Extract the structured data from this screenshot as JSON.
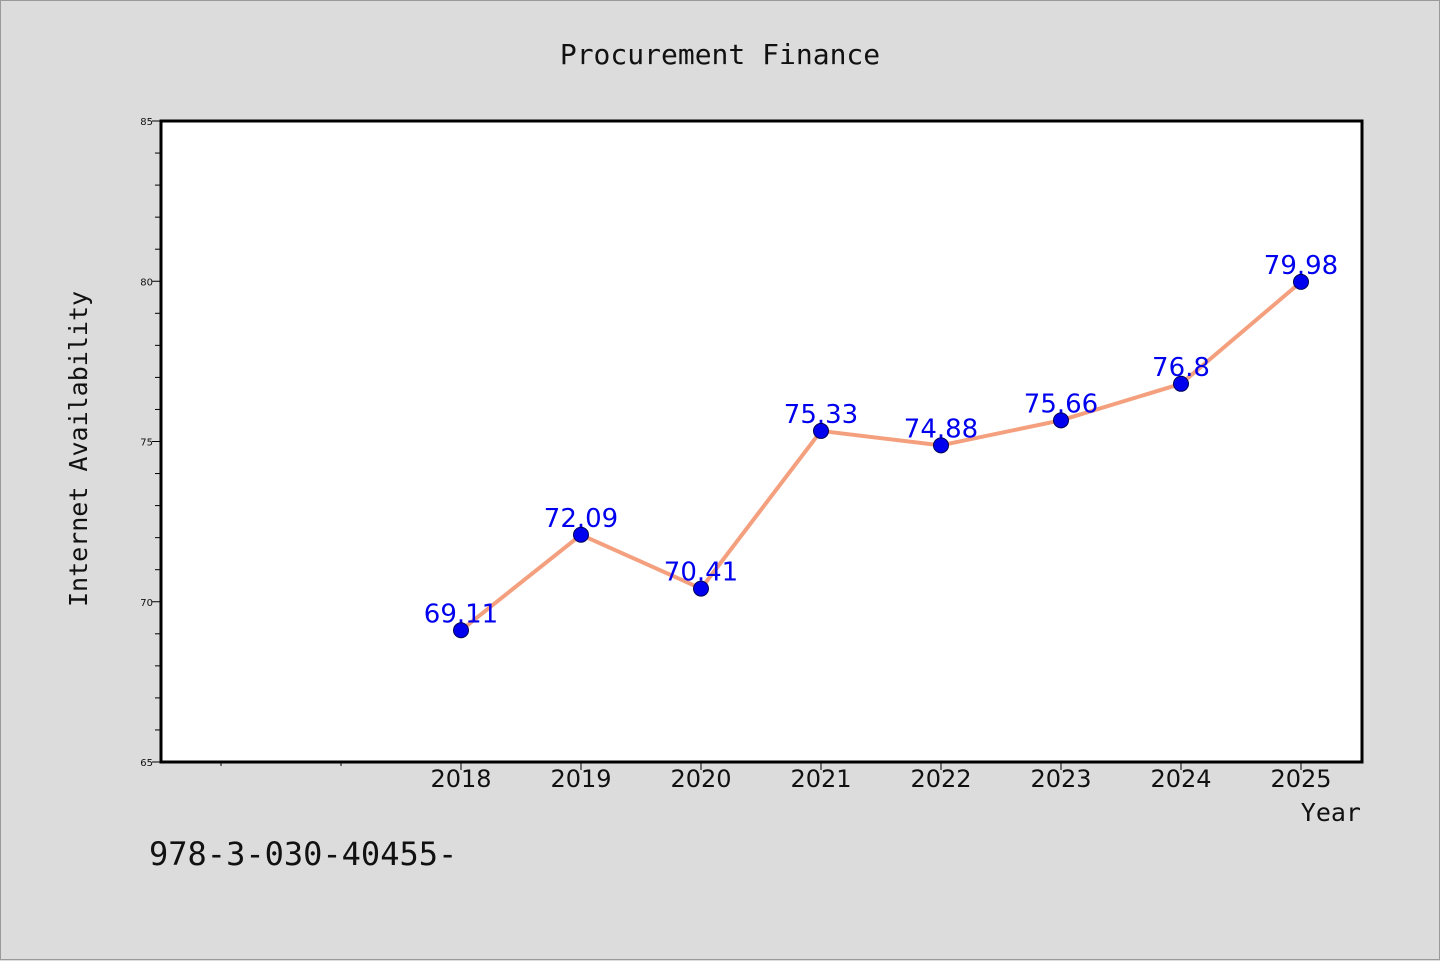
{
  "chart_data": {
    "type": "line",
    "title": "Procurement Finance",
    "xlabel": "Year",
    "ylabel": "Internet Availability",
    "x": [
      "2018",
      "2019",
      "2020",
      "2021",
      "2022",
      "2023",
      "2024",
      "2025"
    ],
    "series": [
      {
        "values": [
          69.11,
          72.09,
          70.41,
          75.33,
          74.88,
          75.66,
          76.8,
          79.98
        ],
        "data_labels": [
          "69.11",
          "72.09",
          "70.41",
          "75.33",
          "74.88",
          "75.66",
          "76.8",
          "79.98"
        ]
      }
    ],
    "ylim": [
      65,
      85
    ],
    "yticks": [
      "65",
      "70",
      "75",
      "80",
      "85"
    ],
    "grid": false,
    "legend": "none",
    "colors": {
      "line": "#f4a07e",
      "marker": "#0000ee",
      "label": "#0000ee"
    }
  },
  "footer": {
    "code_text": "978-3-030-40455-"
  }
}
